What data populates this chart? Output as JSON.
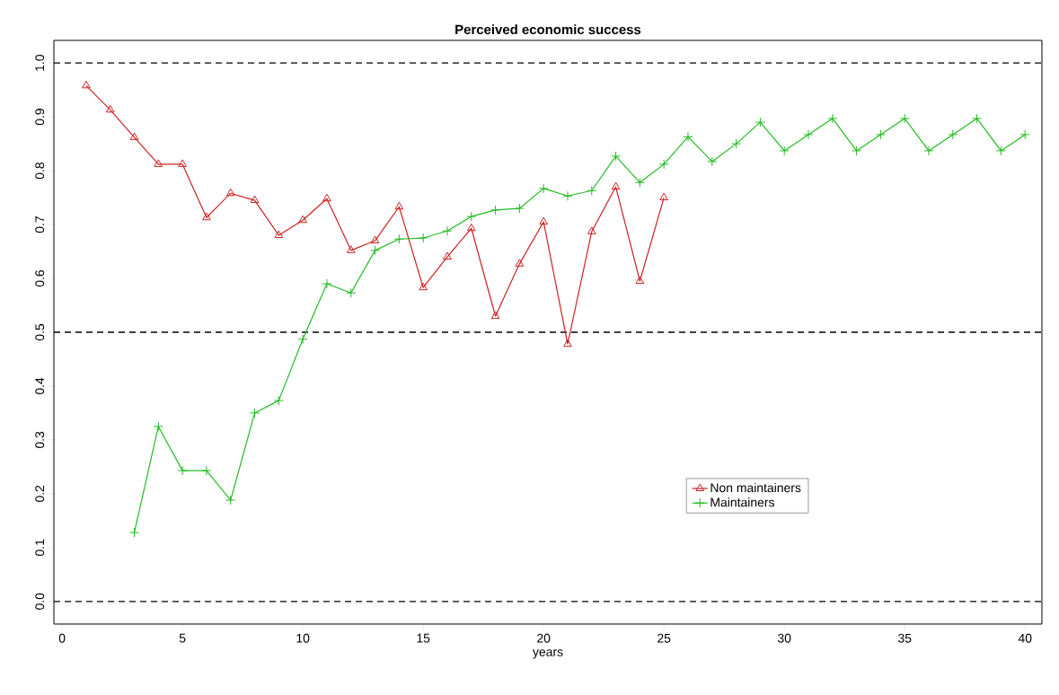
{
  "chart_data": {
    "type": "line",
    "title": "Perceived economic success",
    "xlabel": "years",
    "xlim": [
      -0.34,
      40.7
    ],
    "ylim": [
      -0.042,
      1.042
    ],
    "xticks": [
      0,
      5,
      10,
      15,
      20,
      25,
      30,
      35,
      40
    ],
    "yticks": [
      {
        "value": 0,
        "label": "0.0"
      },
      {
        "value": 0.1,
        "label": "0.1"
      },
      {
        "value": 0.2,
        "label": "0.2"
      },
      {
        "value": 0.3,
        "label": "0.3"
      },
      {
        "value": 0.4,
        "label": "0.4"
      },
      {
        "value": 0.5,
        "label": "0.5"
      },
      {
        "value": 0.6,
        "label": "0.6"
      },
      {
        "value": 0.7,
        "label": "0.7"
      },
      {
        "value": 0.8,
        "label": "0.8"
      },
      {
        "value": 0.9,
        "label": "0.9"
      },
      {
        "value": 1.0,
        "label": "1.0"
      }
    ],
    "legend": "bottom right",
    "grid": false,
    "ref_lines": [
      {
        "axis": "y",
        "value": 0,
        "line_style": "dashed",
        "color": "#000000"
      },
      {
        "axis": "y",
        "value": 0.5,
        "line_style": "dashed",
        "color": "#000000"
      },
      {
        "axis": "y",
        "value": 1.0,
        "line_style": "dashed",
        "color": "#000000"
      }
    ],
    "series": [
      {
        "name": "Non maintainers",
        "color": "#cc2222",
        "marker": "triangle",
        "x": [
          1,
          2,
          3,
          4,
          5,
          6,
          7,
          8,
          9,
          10,
          11,
          12,
          13,
          14,
          15,
          16,
          17,
          18,
          19,
          20,
          21,
          22,
          23,
          24,
          25
        ],
        "values": [
          0.958,
          0.913,
          0.862,
          0.812,
          0.812,
          0.713,
          0.758,
          0.745,
          0.68,
          0.708,
          0.748,
          0.652,
          0.67,
          0.733,
          0.583,
          0.64,
          0.693,
          0.53,
          0.627,
          0.705,
          0.478,
          0.687,
          0.77,
          0.595,
          0.75
        ]
      },
      {
        "name": "Maintainers",
        "color": "#22bb22",
        "marker": "cross",
        "x": [
          3,
          4,
          5,
          6,
          7,
          8,
          9,
          10,
          11,
          12,
          13,
          14,
          15,
          16,
          17,
          18,
          19,
          20,
          21,
          22,
          23,
          24,
          25,
          26,
          27,
          28,
          29,
          30,
          31,
          32,
          33,
          34,
          35,
          36,
          37,
          38,
          39,
          40
        ],
        "values": [
          0.128,
          0.325,
          0.243,
          0.243,
          0.188,
          0.35,
          0.373,
          0.487,
          0.59,
          0.573,
          0.652,
          0.673,
          0.675,
          0.688,
          0.715,
          0.727,
          0.73,
          0.767,
          0.753,
          0.763,
          0.827,
          0.778,
          0.812,
          0.863,
          0.817,
          0.85,
          0.89,
          0.837,
          0.867,
          0.897,
          0.837,
          0.867,
          0.897,
          0.837,
          0.867,
          0.897,
          0.837,
          0.867
        ]
      }
    ]
  }
}
